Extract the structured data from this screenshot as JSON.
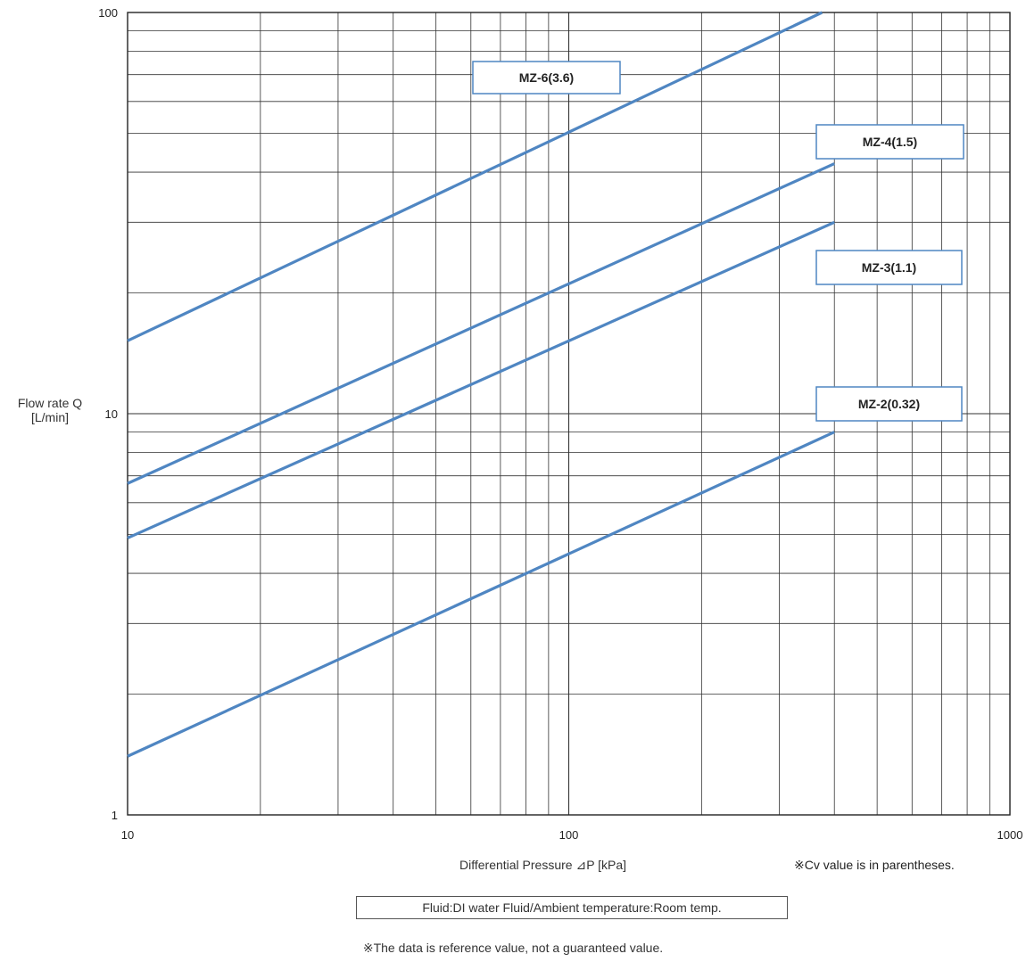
{
  "chart_data": {
    "type": "line",
    "xscale": "log",
    "yscale": "log",
    "xlim": [
      10,
      1000
    ],
    "ylim": [
      1,
      100
    ],
    "x_ticks": [
      "10",
      "100",
      "1000"
    ],
    "y_ticks": [
      "1",
      "10",
      "100"
    ],
    "grid": true,
    "xlabel": "Differential Pressure ⊿P [kPa]",
    "ylabel_line1": "Flow rate Q",
    "ylabel_line2": "[L/min]",
    "series": [
      {
        "name": "MZ-6(3.6)",
        "points": [
          [
            10,
            15.2
          ],
          [
            375,
            100
          ]
        ]
      },
      {
        "name": "MZ-4(1.5)",
        "points": [
          [
            10,
            6.7
          ],
          [
            400,
            42
          ]
        ]
      },
      {
        "name": "MZ-3(1.1)",
        "points": [
          [
            10,
            4.9
          ],
          [
            400,
            30
          ]
        ]
      },
      {
        "name": "MZ-2(0.32)",
        "points": [
          [
            10,
            1.4
          ],
          [
            400,
            9.0
          ]
        ]
      }
    ],
    "line_color": "#4f86c2"
  },
  "notes": {
    "cv": "※Cv value is in parentheses.",
    "fluid": "Fluid:DI water   Fluid/Ambient temperature:Room temp.",
    "reference": "※The data is reference value, not a guaranteed value."
  }
}
